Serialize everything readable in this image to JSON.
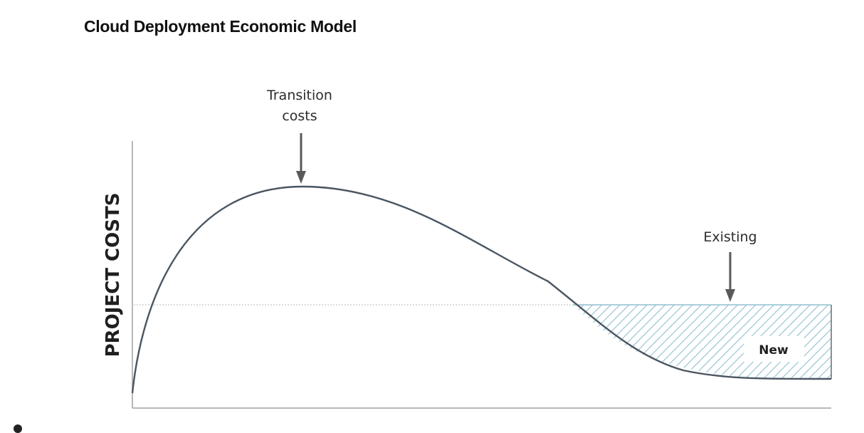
{
  "title": "Cloud Deployment Economic Model",
  "y_axis_label": "PROJECT COSTS",
  "annotations": {
    "peak_line1": "Transition",
    "peak_line2": "costs",
    "existing": "Existing",
    "new": "New"
  },
  "colors": {
    "curve": "#4a5661",
    "arrow": "#5a5a5a",
    "hatch": "#8fbfd0",
    "axis": "#a0a0a0",
    "dotted": "#c8c8c8"
  }
}
